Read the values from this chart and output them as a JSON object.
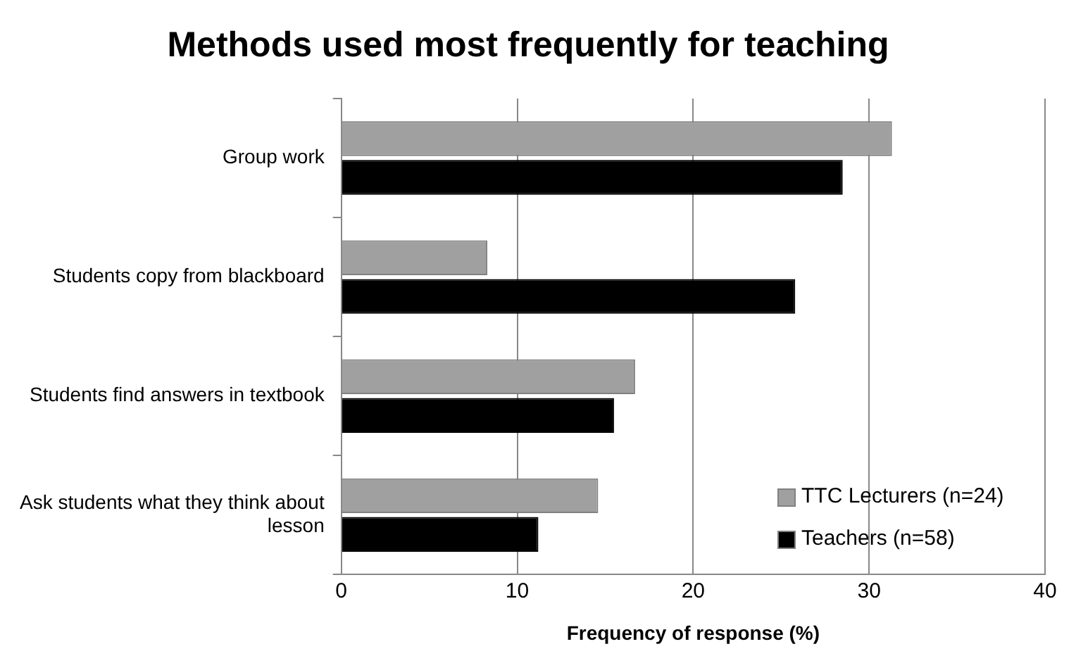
{
  "chart_data": {
    "type": "bar",
    "orientation": "horizontal",
    "title": "Methods used most frequently for teaching",
    "xlabel": "Frequency of response (%)",
    "categories": [
      "Group work",
      "Students copy from blackboard",
      "Students find answers in textbook",
      "Ask students what they think about lesson"
    ],
    "series": [
      {
        "name": "TTC Lecturers (n=24)",
        "color": "#a0a0a0",
        "values": [
          31.3,
          8.3,
          16.7,
          14.6
        ]
      },
      {
        "name": "Teachers (n=58)",
        "color": "#000000",
        "values": [
          28.5,
          25.8,
          15.5,
          11.2
        ]
      }
    ],
    "xlim": [
      0,
      40
    ],
    "xticks": [
      0,
      10,
      20,
      30,
      40
    ],
    "grid": "x",
    "legend": "bottom right"
  }
}
